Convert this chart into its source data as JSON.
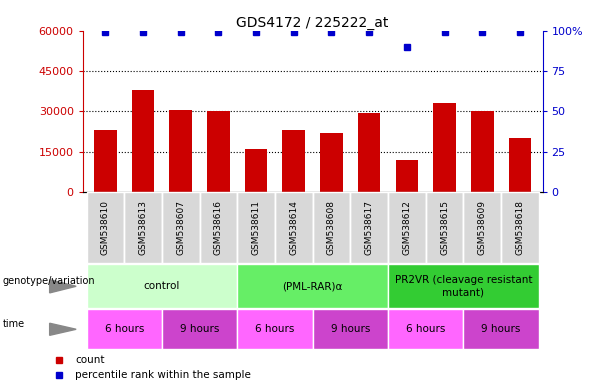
{
  "title": "GDS4172 / 225222_at",
  "samples": [
    "GSM538610",
    "GSM538613",
    "GSM538607",
    "GSM538616",
    "GSM538611",
    "GSM538614",
    "GSM538608",
    "GSM538617",
    "GSM538612",
    "GSM538615",
    "GSM538609",
    "GSM538618"
  ],
  "counts": [
    23000,
    38000,
    30500,
    30000,
    16000,
    23000,
    22000,
    29500,
    12000,
    33000,
    30000,
    20000
  ],
  "percentile_ranks": [
    99,
    99,
    99,
    99,
    99,
    99,
    99,
    99,
    90,
    99,
    99,
    99
  ],
  "bar_color": "#cc0000",
  "dot_color": "#0000cc",
  "ylim_left": [
    0,
    60000
  ],
  "ylim_right": [
    0,
    100
  ],
  "yticks_left": [
    0,
    15000,
    30000,
    45000,
    60000
  ],
  "ytick_labels_left": [
    "0",
    "15000",
    "30000",
    "45000",
    "60000"
  ],
  "yticks_right": [
    0,
    25,
    50,
    75,
    100
  ],
  "ytick_labels_right": [
    "0",
    "25",
    "50",
    "75",
    "100%"
  ],
  "genotype_groups": [
    {
      "label": "control",
      "start": 0,
      "end": 4,
      "color": "#ccffcc"
    },
    {
      "label": "(PML-RAR)α",
      "start": 4,
      "end": 8,
      "color": "#66ee66"
    },
    {
      "label": "PR2VR (cleavage resistant\nmutant)",
      "start": 8,
      "end": 12,
      "color": "#33cc33"
    }
  ],
  "time_groups": [
    {
      "label": "6 hours",
      "start": 0,
      "end": 2,
      "color": "#ff66ff"
    },
    {
      "label": "9 hours",
      "start": 2,
      "end": 4,
      "color": "#cc44cc"
    },
    {
      "label": "6 hours",
      "start": 4,
      "end": 6,
      "color": "#ff66ff"
    },
    {
      "label": "9 hours",
      "start": 6,
      "end": 8,
      "color": "#cc44cc"
    },
    {
      "label": "6 hours",
      "start": 8,
      "end": 10,
      "color": "#ff66ff"
    },
    {
      "label": "9 hours",
      "start": 10,
      "end": 12,
      "color": "#cc44cc"
    }
  ],
  "legend_count_color": "#cc0000",
  "legend_dot_color": "#0000cc",
  "sample_box_color": "#d8d8d8",
  "genotype_label": "genotype/variation",
  "time_label": "time"
}
